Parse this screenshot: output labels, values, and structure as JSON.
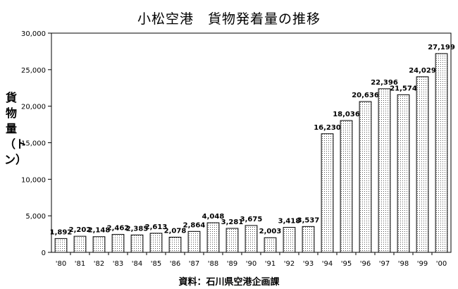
{
  "chart_data": {
    "type": "bar",
    "title": "小松空港　貨物発着量の推移",
    "ylabel": "貨物量（トン）",
    "source": "資料：石川県空港企画課",
    "ylim": [
      0,
      30000
    ],
    "yticks": [
      "0",
      "5,000",
      "10,000",
      "15,000",
      "20,000",
      "25,000",
      "30,000"
    ],
    "yticks_values": [
      0,
      5000,
      10000,
      15000,
      20000,
      25000,
      30000
    ],
    "categories": [
      "'80",
      "'81",
      "'82",
      "'83",
      "'84",
      "'85",
      "'86",
      "'87",
      "'88",
      "'89",
      "'90",
      "'91",
      "'92",
      "'93",
      "'94",
      "'95",
      "'96",
      "'97",
      "'98",
      "'99",
      "'00"
    ],
    "values": [
      1892,
      2202,
      2148,
      2462,
      2385,
      2613,
      2078,
      2864,
      4048,
      3281,
      3675,
      2003,
      3418,
      3537,
      16230,
      18036,
      20636,
      22396,
      21574,
      24029,
      27199
    ],
    "value_labels": [
      "1,892",
      "2,202",
      "2,148",
      "2,462",
      "2,385",
      "2,613",
      "2,078",
      "2,864",
      "4,048",
      "3,281",
      "3,675",
      "2,003",
      "3,418",
      "3,537",
      "16,230",
      "18,036",
      "20,636",
      "22,396",
      "21,574",
      "24,029",
      "27,199"
    ],
    "grid": false,
    "legend": "none"
  }
}
